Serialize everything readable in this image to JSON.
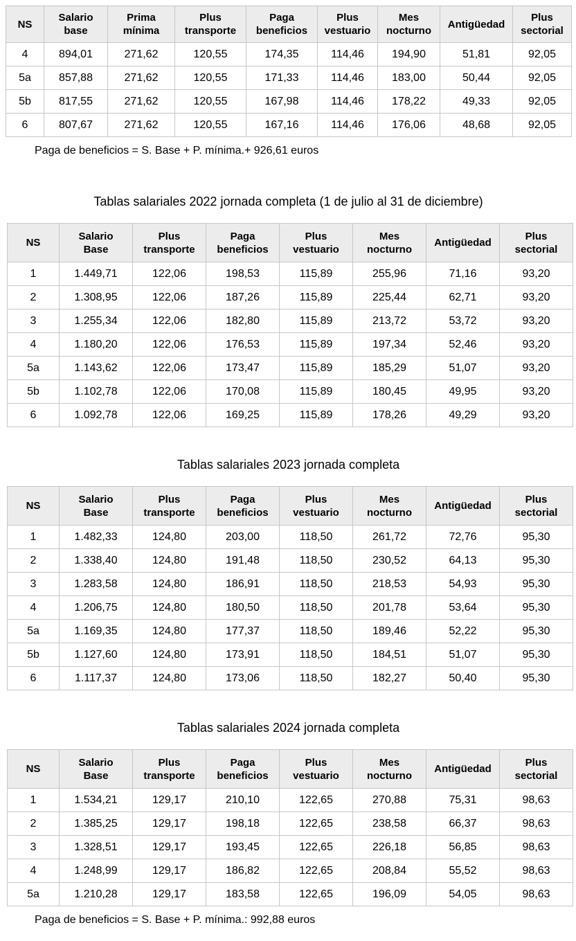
{
  "colors": {
    "page_bg": "#ffffff",
    "text": "#000000",
    "header_bg": "#ececec",
    "border": "#c6c6c6"
  },
  "tables": [
    {
      "title": null,
      "headers": [
        "NS",
        "Salario\nbase",
        "Prima\nmínima",
        "Plus\ntransporte",
        "Paga\nbeneficios",
        "Plus\nvestuario",
        "Mes\nnocturno",
        "Antigüedad",
        "Plus\nsectorial"
      ],
      "rows": [
        [
          "4",
          "894,01",
          "271,62",
          "120,55",
          "174,35",
          "114,46",
          "194,90",
          "51,81",
          "92,05"
        ],
        [
          "5a",
          "857,88",
          "271,62",
          "120,55",
          "171,33",
          "114,46",
          "183,00",
          "50,44",
          "92,05"
        ],
        [
          "5b",
          "817,55",
          "271,62",
          "120,55",
          "167,98",
          "114,46",
          "178,22",
          "49,33",
          "92,05"
        ],
        [
          "6",
          "807,67",
          "271,62",
          "120,55",
          "167,16",
          "114,46",
          "176,06",
          "48,68",
          "92,05"
        ]
      ],
      "footnote": "Paga de beneficios = S. Base + P. mínima.+ 926,61 euros"
    },
    {
      "title": "Tablas salariales 2022 jornada completa (1 de julio al 31 de diciembre)",
      "headers": [
        "NS",
        "Salario\nBase",
        "Plus\ntransporte",
        "Paga\nbeneficios",
        "Plus\nvestuario",
        "Mes\nnocturno",
        "Antigüedad",
        "Plus\nsectorial"
      ],
      "rows": [
        [
          "1",
          "1.449,71",
          "122,06",
          "198,53",
          "115,89",
          "255,96",
          "71,16",
          "93,20"
        ],
        [
          "2",
          "1.308,95",
          "122,06",
          "187,26",
          "115,89",
          "225,44",
          "62,71",
          "93,20"
        ],
        [
          "3",
          "1.255,34",
          "122,06",
          "182,80",
          "115,89",
          "213,72",
          "53,72",
          "93,20"
        ],
        [
          "4",
          "1.180,20",
          "122,06",
          "176,53",
          "115,89",
          "197,34",
          "52,46",
          "93,20"
        ],
        [
          "5a",
          "1.143,62",
          "122,06",
          "173,47",
          "115,89",
          "185,29",
          "51,07",
          "93,20"
        ],
        [
          "5b",
          "1.102,78",
          "122,06",
          "170,08",
          "115,89",
          "180,45",
          "49,95",
          "93,20"
        ],
        [
          "6",
          "1.092,78",
          "122,06",
          "169,25",
          "115,89",
          "178,26",
          "49,29",
          "93,20"
        ]
      ],
      "footnote": null
    },
    {
      "title": "Tablas salariales 2023 jornada completa",
      "headers": [
        "NS",
        "Salario\nBase",
        "Plus\ntransporte",
        "Paga\nbeneficios",
        "Plus\nvestuario",
        "Mes\nnocturno",
        "Antigüedad",
        "Plus\nsectorial"
      ],
      "rows": [
        [
          "1",
          "1.482,33",
          "124,80",
          "203,00",
          "118,50",
          "261,72",
          "72,76",
          "95,30"
        ],
        [
          "2",
          "1.338,40",
          "124,80",
          "191,48",
          "118,50",
          "230,52",
          "64,13",
          "95,30"
        ],
        [
          "3",
          "1.283,58",
          "124,80",
          "186,91",
          "118,50",
          "218,53",
          "54,93",
          "95,30"
        ],
        [
          "4",
          "1.206,75",
          "124,80",
          "180,50",
          "118,50",
          "201,78",
          "53,64",
          "95,30"
        ],
        [
          "5a",
          "1.169,35",
          "124,80",
          "177,37",
          "118,50",
          "189,46",
          "52,22",
          "95,30"
        ],
        [
          "5b",
          "1.127,60",
          "124,80",
          "173,91",
          "118,50",
          "184,51",
          "51,07",
          "95,30"
        ],
        [
          "6",
          "1.117,37",
          "124,80",
          "173,06",
          "118,50",
          "182,27",
          "50,40",
          "95,30"
        ]
      ],
      "footnote": null
    },
    {
      "title": "Tablas salariales 2024 jornada completa",
      "headers": [
        "NS",
        "Salario\nBase",
        "Plus\ntransporte",
        "Paga\nbeneficios",
        "Plus\nvestuario",
        "Mes\nnocturno",
        "Antigüedad",
        "Plus\nsectorial"
      ],
      "rows": [
        [
          "1",
          "1.534,21",
          "129,17",
          "210,10",
          "122,65",
          "270,88",
          "75,31",
          "98,63"
        ],
        [
          "2",
          "1.385,25",
          "129,17",
          "198,18",
          "122,65",
          "238,58",
          "66,37",
          "98,63"
        ],
        [
          "3",
          "1.328,51",
          "129,17",
          "193,45",
          "122,65",
          "226,18",
          "56,85",
          "98,63"
        ],
        [
          "4",
          "1.248,99",
          "129,17",
          "186,82",
          "122,65",
          "208,84",
          "55,52",
          "98,63"
        ],
        [
          "5a",
          "1.210,28",
          "129,17",
          "183,58",
          "122,65",
          "196,09",
          "54,05",
          "98,63"
        ]
      ],
      "footnote": "Paga de beneficios = S. Base + P. mínima.: 992,88 euros"
    }
  ]
}
